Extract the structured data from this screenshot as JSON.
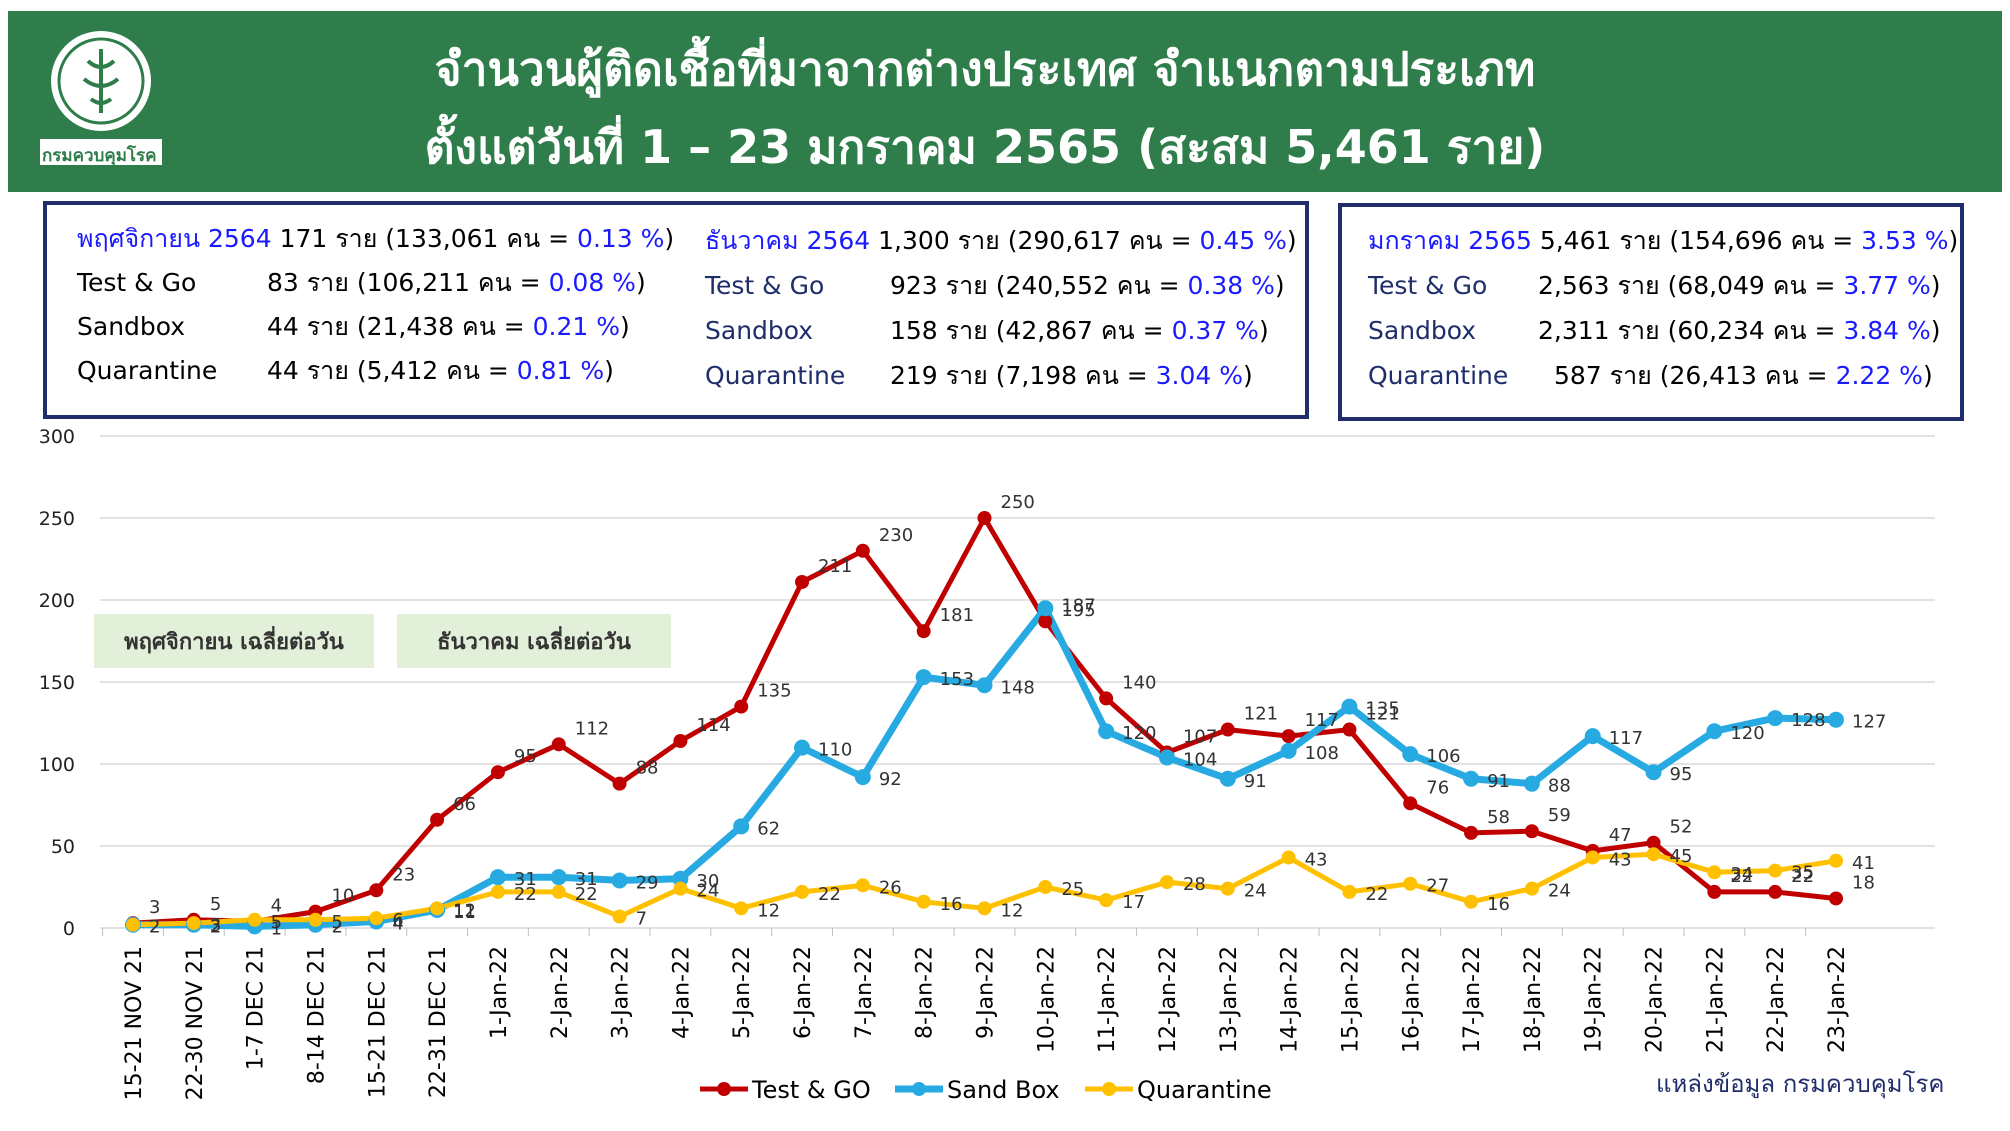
{
  "header": {
    "title_line1": "จำนวนผู้ติดเชื้อที่มาจากต่างประเทศ จำแนกตามประเภท",
    "title_line2": "ตั้งแต่วันที่  1 – 23  มกราคม  2565 (สะสม 5,461 ราย)",
    "logo_caption": "กรมควบคุมโรค"
  },
  "stats": {
    "nov": {
      "month": "พฤศจิกายน 2564",
      "total": "171 ราย (133,061 คน = ",
      "total_pct": "0.13 %",
      "close": ")",
      "rows": [
        {
          "label": "Test & Go",
          "value": "83  ราย (106,211 คน = ",
          "pct": "0.08 %",
          "close": ")"
        },
        {
          "label": "Sandbox",
          "value": "44  ราย  (21,438 คน  = ",
          "pct": "0.21 %",
          "close": ")"
        },
        {
          "label": "Quarantine",
          "value": "44  ราย  (5,412 คน    = ",
          "pct": "0.81 %",
          "close": ")"
        }
      ]
    },
    "dec": {
      "month": "ธันวาคม 2564",
      "total": "1,300 ราย (290,617 คน = ",
      "total_pct": "0.45 %",
      "close": ")",
      "rows": [
        {
          "label": "Test & Go",
          "value": "923  ราย (240,552 คน = ",
          "pct": "0.38 %",
          "close": ")"
        },
        {
          "label": "Sandbox",
          "value": "158  ราย (42,867 คน     = ",
          "pct": "0.37 %",
          "close": ")"
        },
        {
          "label": "Quarantine",
          "value": "219  ราย (7,198 คน      = ",
          "pct": "3.04 %",
          "close": ")"
        }
      ]
    },
    "jan": {
      "month": "มกราคม 2565",
      "total": "5,461 ราย (154,696 คน = ",
      "total_pct": "3.53 %",
      "close": ")",
      "rows": [
        {
          "label": "Test & Go",
          "value": "2,563 ราย (68,049 คน = ",
          "pct": "3.77 %",
          "close": ")"
        },
        {
          "label": "Sandbox",
          "value": "2,311 ราย (60,234 คน = ",
          "pct": "3.84 %",
          "close": ")"
        },
        {
          "label": "Quarantine",
          "value": "587 ราย (26,413 คน = ",
          "pct": "2.22 %",
          "close": ")"
        }
      ]
    }
  },
  "notes": {
    "nov_avg": "พฤศจิกายน เฉลี่ยต่อวัน",
    "dec_avg": "ธันวาคม เฉลี่ยต่อวัน"
  },
  "source": "แหล่งข้อมูล กรมควบคุมโรค",
  "colors": {
    "header_bg": "#2e7d4a",
    "box_border": "#1f2d6b",
    "test_go": "#c00000",
    "sandbox": "#27aae1",
    "quarantine": "#ffc000",
    "pct_text": "#1a1aff"
  },
  "chart_data": {
    "type": "line",
    "categories": [
      "15-21 NOV 21",
      "22-30 NOV 21",
      "1-7 DEC 21",
      "8-14 DEC 21",
      "15-21 DEC 21",
      "22-31 DEC 21",
      "1-Jan-22",
      "2-Jan-22",
      "3-Jan-22",
      "4-Jan-22",
      "5-Jan-22",
      "6-Jan-22",
      "7-Jan-22",
      "8-Jan-22",
      "9-Jan-22",
      "10-Jan-22",
      "11-Jan-22",
      "12-Jan-22",
      "13-Jan-22",
      "14-Jan-22",
      "15-Jan-22",
      "16-Jan-22",
      "17-Jan-22",
      "18-Jan-22",
      "19-Jan-22",
      "20-Jan-22",
      "21-Jan-22",
      "22-Jan-22",
      "23-Jan-22"
    ],
    "series": [
      {
        "name": "Test & GO",
        "values": [
          3,
          5,
          4,
          10,
          23,
          66,
          95,
          112,
          88,
          114,
          135,
          211,
          230,
          181,
          250,
          187,
          140,
          107,
          121,
          117,
          121,
          76,
          58,
          59,
          47,
          52,
          22,
          22,
          18
        ]
      },
      {
        "name": "Sand Box",
        "values": [
          2,
          2,
          1,
          2,
          4,
          11,
          31,
          31,
          29,
          30,
          62,
          110,
          92,
          153,
          148,
          195,
          120,
          104,
          91,
          108,
          135,
          106,
          91,
          88,
          117,
          95,
          120,
          128,
          127
        ]
      },
      {
        "name": "Quarantine",
        "values": [
          2,
          3,
          5,
          5,
          6,
          12,
          22,
          22,
          7,
          24,
          12,
          22,
          26,
          16,
          12,
          25,
          17,
          28,
          24,
          43,
          22,
          27,
          16,
          24,
          43,
          45,
          34,
          35,
          41
        ]
      }
    ],
    "yticks": [
      "0",
      "50",
      "100",
      "150",
      "200",
      "250",
      "300"
    ],
    "ylim": [
      0,
      300
    ],
    "grid": true,
    "legend": "bottom"
  }
}
